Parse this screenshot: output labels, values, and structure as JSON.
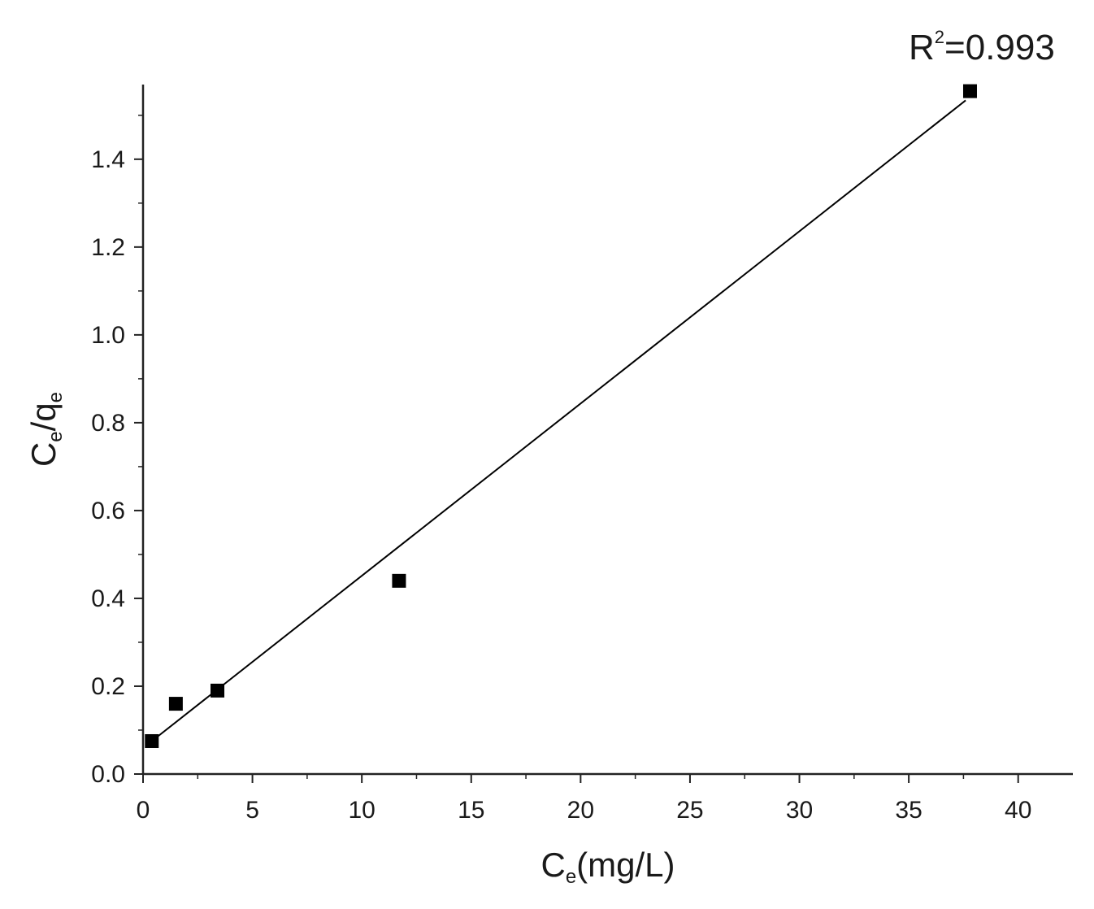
{
  "chart_data": {
    "type": "scatter",
    "title": "",
    "xlabel": {
      "main": "C",
      "sub": "e",
      "rest": "(mg/L)"
    },
    "ylabel": {
      "p1": "C",
      "s1": "e",
      "p2": "/q",
      "s2": "e"
    },
    "xlim": [
      0,
      42.5
    ],
    "ylim": [
      0,
      1.57
    ],
    "x_ticks": [
      0,
      5,
      10,
      15,
      20,
      25,
      30,
      35,
      40
    ],
    "x_tick_labels": [
      "0",
      "5",
      "10",
      "15",
      "20",
      "25",
      "30",
      "35",
      "40"
    ],
    "y_ticks": [
      0.0,
      0.2,
      0.4,
      0.6,
      0.8,
      1.0,
      1.2,
      1.4
    ],
    "y_tick_labels": [
      "0.0",
      "0.2",
      "0.4",
      "0.6",
      "0.8",
      "1.0",
      "1.2",
      "1.4"
    ],
    "series": [
      {
        "marker": "square",
        "color": "#000000",
        "points": [
          {
            "x": 0.4,
            "y": 0.075
          },
          {
            "x": 1.5,
            "y": 0.16
          },
          {
            "x": 3.4,
            "y": 0.19
          },
          {
            "x": 11.7,
            "y": 0.44
          },
          {
            "x": 37.8,
            "y": 1.555
          }
        ]
      }
    ],
    "fit_line": {
      "x": [
        0.3,
        37.6
      ],
      "y": [
        0.071,
        1.534
      ],
      "color": "#000000"
    },
    "annotation": {
      "base": "R",
      "sup": "2",
      "rest": "=0.993"
    },
    "grid": false
  }
}
